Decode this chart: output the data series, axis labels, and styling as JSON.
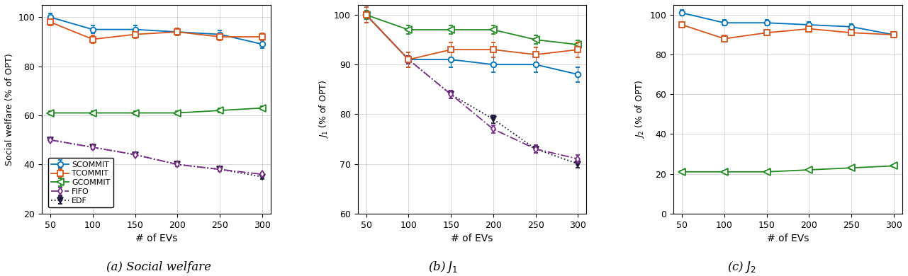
{
  "x": [
    50,
    100,
    150,
    200,
    250,
    300
  ],
  "subplot_a": {
    "title": "(a) Social welfare",
    "ylabel": "Social welfare (% of OPT)",
    "ylim": [
      20,
      105
    ],
    "yticks": [
      20,
      40,
      60,
      80,
      100
    ],
    "SCOMMIT": [
      100,
      95,
      95,
      94,
      93,
      89
    ],
    "TCOMMIT": [
      98,
      91,
      93,
      94,
      92,
      92
    ],
    "GCOMMIT": [
      61,
      61,
      61,
      61,
      62,
      63
    ],
    "FIFO": [
      50,
      47,
      44,
      40,
      38,
      36
    ],
    "EDF": [
      50,
      47,
      44,
      40,
      38,
      35
    ]
  },
  "subplot_b": {
    "title": "(b) $J_1$",
    "ylabel": "$J_1$ (% of OPT)",
    "ylim": [
      60,
      102
    ],
    "yticks": [
      60,
      70,
      80,
      90,
      100
    ],
    "SCOMMIT": [
      100,
      91,
      91,
      90,
      90,
      88
    ],
    "TCOMMIT": [
      100,
      91,
      93,
      93,
      92,
      93
    ],
    "GCOMMIT": [
      100,
      97,
      97,
      97,
      95,
      94
    ],
    "FIFO": [
      100,
      91,
      84,
      77,
      73,
      71
    ],
    "EDF": [
      100,
      91,
      84,
      79,
      73,
      70
    ]
  },
  "subplot_c": {
    "title": "(c) $J_2$",
    "ylabel": "$J_2$ (% of OPT)",
    "ylim": [
      0,
      105
    ],
    "yticks": [
      0,
      20,
      40,
      60,
      80,
      100
    ],
    "SCOMMIT": [
      101,
      96,
      96,
      95,
      94,
      90
    ],
    "TCOMMIT": [
      95,
      88,
      91,
      93,
      91,
      90
    ],
    "GCOMMIT": [
      21,
      21,
      21,
      22,
      23,
      24
    ]
  },
  "colors": {
    "SCOMMIT": "#0072BD",
    "TCOMMIT": "#D95319",
    "GCOMMIT": "#228B22",
    "FIFO": "#7B2D8B",
    "EDF": "#1C1C3A"
  },
  "xlabel": "# of EVs",
  "caption_a": "(a) Social welfare",
  "caption_b": "(b) ",
  "caption_c": "(c) ",
  "caption_j1": "J_1",
  "caption_j2": "J_2"
}
